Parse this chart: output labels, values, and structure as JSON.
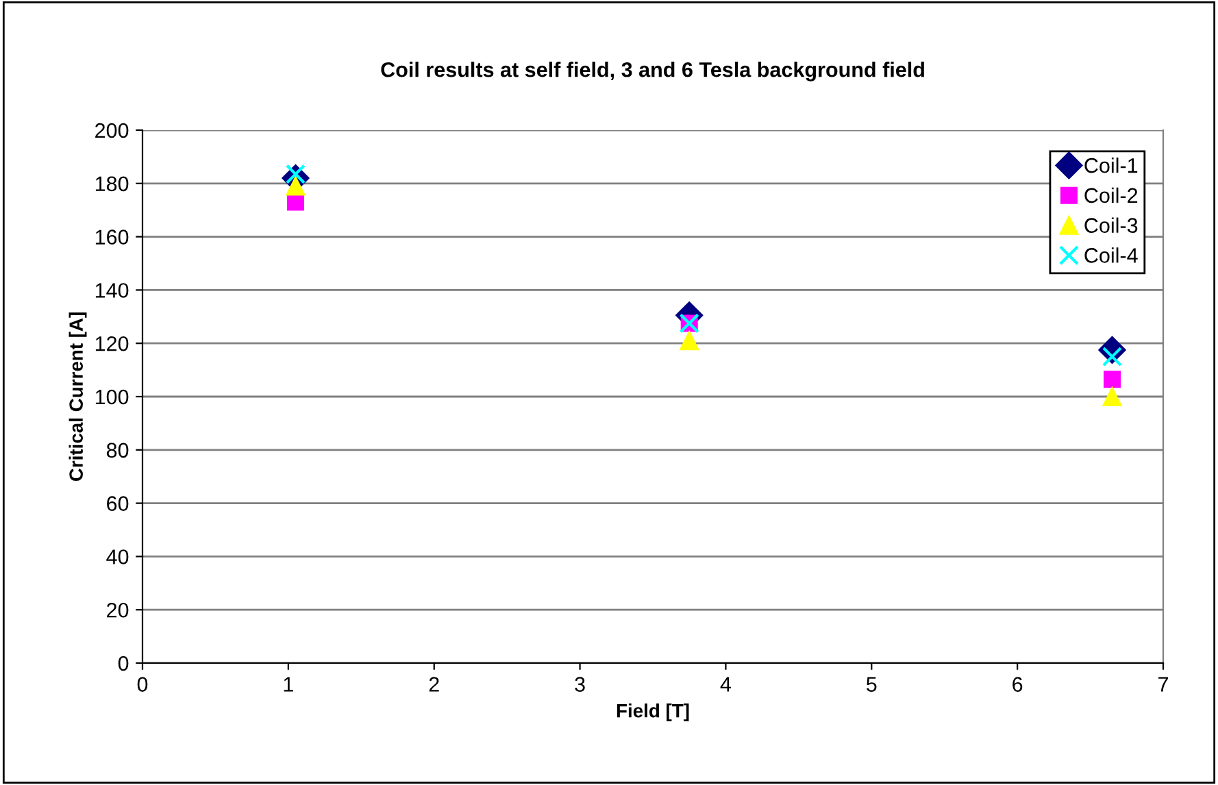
{
  "chart_data": {
    "type": "scatter",
    "title": "Coil results at self field, 3 and 6 Tesla background field",
    "xlabel": "Field [T]",
    "ylabel": "Critical Current [A]",
    "xlim": [
      0,
      7
    ],
    "xticks": [
      0,
      1,
      2,
      3,
      4,
      5,
      6,
      7
    ],
    "ylim": [
      0,
      200
    ],
    "yticks": [
      0,
      20,
      40,
      60,
      80,
      100,
      120,
      140,
      160,
      180,
      200
    ],
    "grid": "y",
    "legend": "top right",
    "x": [
      1.05,
      3.75,
      6.65
    ],
    "series": [
      {
        "name": "Coil-1",
        "color": "#000080",
        "marker": "diamond",
        "values": [
          182,
          130.5,
          117.5
        ]
      },
      {
        "name": "Coil-2",
        "color": "#ff00ff",
        "marker": "square",
        "values": [
          173,
          127.5,
          106.5
        ]
      },
      {
        "name": "Coil-3",
        "color": "#ffff00",
        "marker": "triangle",
        "values": [
          179,
          121,
          100
        ]
      },
      {
        "name": "Coil-4",
        "color": "#00ffff",
        "marker": "cross",
        "values": [
          183.5,
          127.5,
          115
        ]
      }
    ]
  }
}
